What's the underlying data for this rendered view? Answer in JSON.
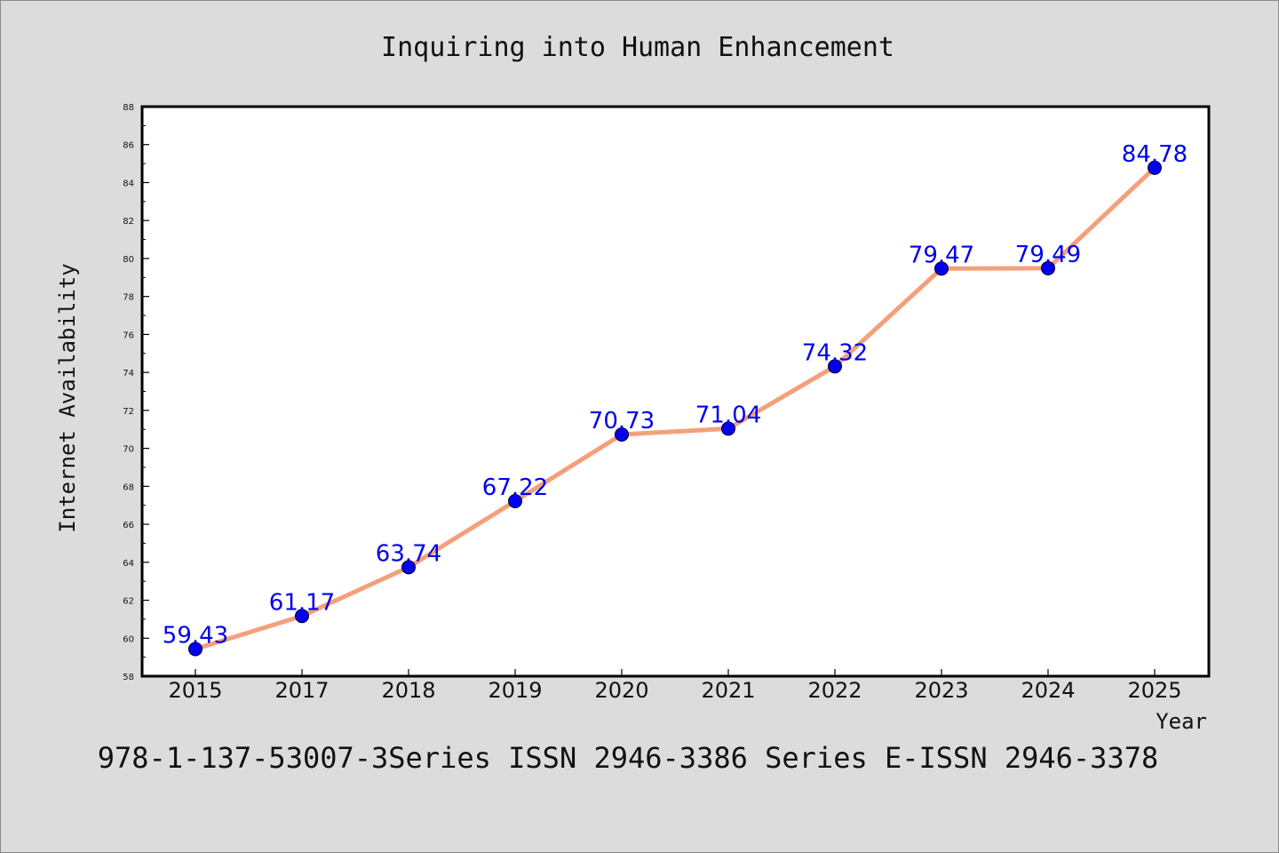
{
  "chart_data": {
    "type": "line",
    "title": "Inquiring into Human Enhancement",
    "xlabel": "Year",
    "ylabel": "Internet Availability",
    "categories": [
      "2015",
      "2017",
      "2018",
      "2019",
      "2020",
      "2021",
      "2022",
      "2023",
      "2024",
      "2025"
    ],
    "values": [
      59.43,
      61.17,
      63.74,
      67.22,
      70.73,
      71.04,
      74.32,
      79.47,
      79.49,
      84.78
    ],
    "data_labels": [
      "59.43",
      "61.17",
      "63.74",
      "67.22",
      "70.73",
      "71.04",
      "74.32",
      "79.47",
      "79.49",
      "84.78"
    ],
    "ylim": [
      58,
      88
    ],
    "yticks": [
      58,
      60,
      62,
      64,
      66,
      68,
      70,
      72,
      74,
      76,
      78,
      80,
      82,
      84,
      86,
      88
    ],
    "grid": false,
    "legend": "none",
    "line_color": "#f4a07a",
    "marker_color": "#0000ee",
    "label_color": "#0000ee",
    "background_color": "#dcdcdc",
    "plot_background": "#ffffff"
  },
  "footer": "978-1-137-53007-3Series ISSN 2946-3386 Series E-ISSN 2946-3378"
}
